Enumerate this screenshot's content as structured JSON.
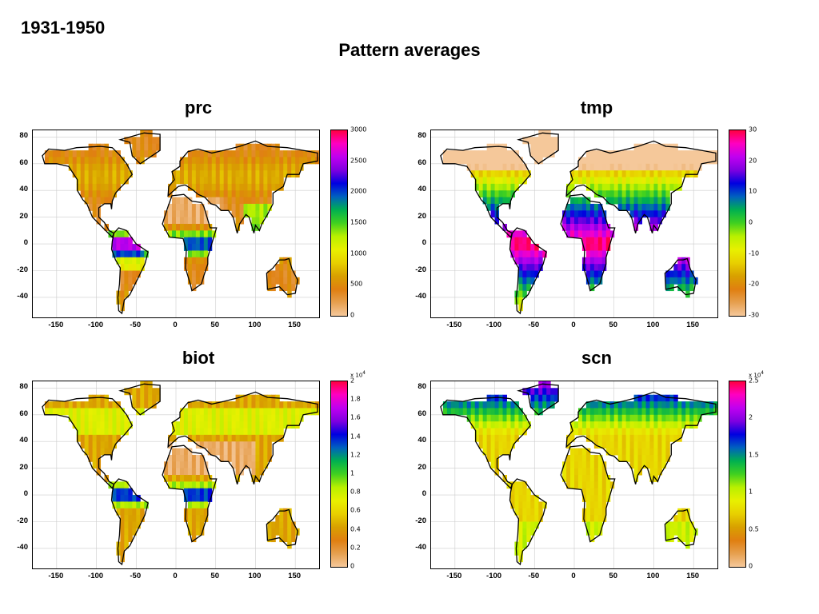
{
  "period": "1931-1950",
  "title": "Pattern averages",
  "colors": {
    "colormap": [
      "#f5c89a",
      "#e6a050",
      "#e07f10",
      "#d8a000",
      "#e8d000",
      "#e8f000",
      "#b8f000",
      "#40d020",
      "#00b050",
      "#0060c0",
      "#0000e0",
      "#8000e0",
      "#c000f0",
      "#ff00c0",
      "#ff0040"
    ],
    "ocean": "#ffffff",
    "coast": "#000000"
  },
  "chart_data": [
    {
      "type": "heatmap",
      "title": "prc",
      "xlim": [
        -180,
        180
      ],
      "ylim": [
        -55,
        85
      ],
      "xticks": [
        -150,
        -100,
        -50,
        0,
        50,
        100,
        150
      ],
      "yticks": [
        80,
        60,
        40,
        20,
        0,
        -20,
        -40
      ],
      "xtick_labels": [
        "-150",
        "-100",
        "-50",
        "0",
        "50",
        "100",
        "150"
      ],
      "ytick_labels": [
        "80",
        "60",
        "40",
        "20",
        "0",
        "-20",
        "-40"
      ],
      "grid": true,
      "colorbar": {
        "range": [
          0,
          3000
        ],
        "ticks": [
          0,
          500,
          1000,
          1500,
          2000,
          2500,
          3000
        ],
        "tick_labels": [
          "0",
          "500",
          "1000",
          "1500",
          "2000",
          "2500",
          "3000"
        ],
        "multiplier": ""
      }
    },
    {
      "type": "heatmap",
      "title": "tmp",
      "xlim": [
        -180,
        180
      ],
      "ylim": [
        -55,
        85
      ],
      "xticks": [
        -150,
        -100,
        -50,
        0,
        50,
        100,
        150
      ],
      "yticks": [
        80,
        60,
        40,
        20,
        0,
        -20,
        -40
      ],
      "xtick_labels": [
        "-150",
        "-100",
        "-50",
        "0",
        "50",
        "100",
        "150"
      ],
      "ytick_labels": [
        "80",
        "60",
        "40",
        "20",
        "0",
        "-20",
        "-40"
      ],
      "grid": true,
      "colorbar": {
        "range": [
          -30,
          30
        ],
        "ticks": [
          -30,
          -20,
          -10,
          0,
          10,
          20,
          30
        ],
        "tick_labels": [
          "-30",
          "-20",
          "-10",
          "0",
          "10",
          "20",
          "30"
        ],
        "multiplier": ""
      }
    },
    {
      "type": "heatmap",
      "title": "biot",
      "xlim": [
        -180,
        180
      ],
      "ylim": [
        -55,
        85
      ],
      "xticks": [
        -150,
        -100,
        -50,
        0,
        50,
        100,
        150
      ],
      "yticks": [
        80,
        60,
        40,
        20,
        0,
        -20,
        -40
      ],
      "xtick_labels": [
        "-150",
        "-100",
        "-50",
        "0",
        "50",
        "100",
        "150"
      ],
      "ytick_labels": [
        "80",
        "60",
        "40",
        "20",
        "0",
        "-20",
        "-40"
      ],
      "grid": true,
      "colorbar": {
        "range": [
          0,
          2
        ],
        "ticks": [
          0,
          0.2,
          0.4,
          0.6,
          0.8,
          1,
          1.2,
          1.4,
          1.6,
          1.8,
          2
        ],
        "tick_labels": [
          "0",
          "0.2",
          "0.4",
          "0.6",
          "0.8",
          "1",
          "1.2",
          "1.4",
          "1.6",
          "1.8",
          "2"
        ],
        "multiplier": "x 10",
        "multiplier_exp": "4"
      }
    },
    {
      "type": "heatmap",
      "title": "scn",
      "xlim": [
        -180,
        180
      ],
      "ylim": [
        -55,
        85
      ],
      "xticks": [
        -150,
        -100,
        -50,
        0,
        50,
        100,
        150
      ],
      "yticks": [
        80,
        60,
        40,
        20,
        0,
        -20,
        -40
      ],
      "xtick_labels": [
        "-150",
        "-100",
        "-50",
        "0",
        "50",
        "100",
        "150"
      ],
      "ytick_labels": [
        "80",
        "60",
        "40",
        "20",
        "0",
        "-20",
        "-40"
      ],
      "grid": true,
      "colorbar": {
        "range": [
          0,
          2.5
        ],
        "ticks": [
          0,
          0.5,
          1,
          1.5,
          2,
          2.5
        ],
        "tick_labels": [
          "0",
          "0.5",
          "1",
          "1.5",
          "2",
          "2.5"
        ],
        "multiplier": "x 10",
        "multiplier_exp": "4"
      }
    }
  ]
}
